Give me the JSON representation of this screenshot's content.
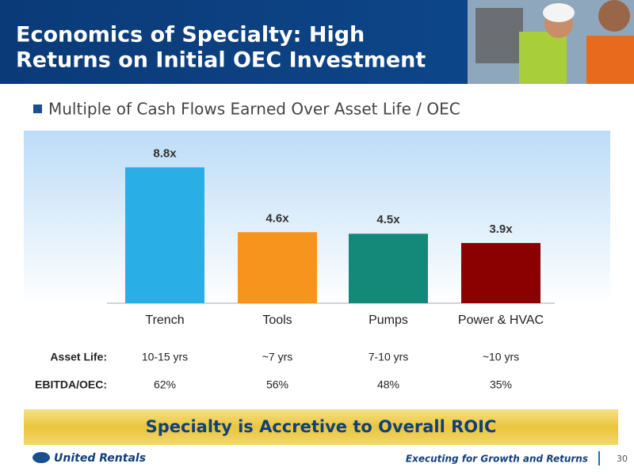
{
  "header": {
    "title_lines": [
      "Economics of Specialty: High",
      "Returns on Initial OEC Investment"
    ]
  },
  "chart_data": {
    "type": "bar",
    "title": "Multiple of Cash Flows Earned Over Asset Life / OEC",
    "categories": [
      "Trench",
      "Tools",
      "Pumps",
      "Power & HVAC"
    ],
    "values": [
      8.8,
      4.6,
      4.5,
      3.9
    ],
    "value_labels": [
      "8.8x",
      "4.6x",
      "4.5x",
      "3.9x"
    ],
    "colors": [
      "#29aee6",
      "#f7941d",
      "#14897a",
      "#8b0000"
    ]
  },
  "table": {
    "rows": [
      [
        "Asset Life:",
        "10-15 yrs",
        "~7 yrs",
        "7-10 yrs",
        "~10 yrs"
      ],
      [
        "EBITDA/OEC:",
        "62%",
        "56%",
        "48%",
        "35%"
      ]
    ]
  },
  "banner": "Specialty is Accretive to Overall ROIC",
  "footer": {
    "logo": "United Rentals",
    "tagline": "Executing for Growth and Returns",
    "page": 30
  }
}
